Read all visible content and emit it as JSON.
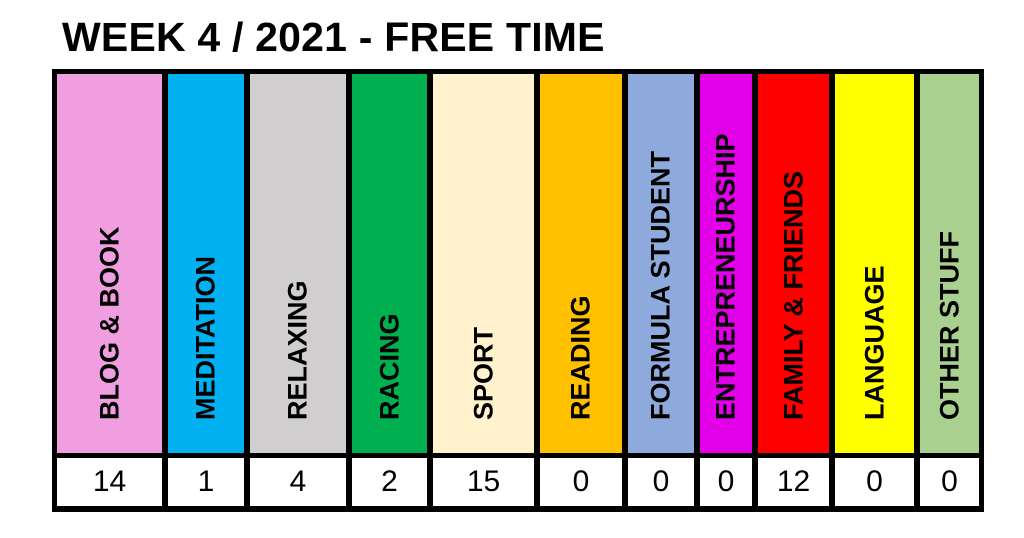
{
  "title": "WEEK 4 / 2021 - FREE TIME",
  "chart_data": {
    "type": "table",
    "title": "WEEK 4 / 2021 - FREE TIME",
    "categories": [
      "BLOG & BOOK",
      "MEDITATION",
      "RELAXING",
      "RACING",
      "SPORT",
      "READING",
      "FORMULA STUDENT",
      "ENTREPRENEURSHIP",
      "FAMILY & FRIENDS",
      "LANGUAGE",
      "OTHER STUFF"
    ],
    "values": [
      14,
      1,
      4,
      2,
      15,
      0,
      0,
      0,
      12,
      0,
      0
    ],
    "colors": [
      "#F09EDF",
      "#00B0F0",
      "#D0CECE",
      "#00B050",
      "#FFF2CC",
      "#FFC000",
      "#8EA9DB",
      "#E100E8",
      "#FF0000",
      "#FFFF00",
      "#A9D08E"
    ]
  }
}
